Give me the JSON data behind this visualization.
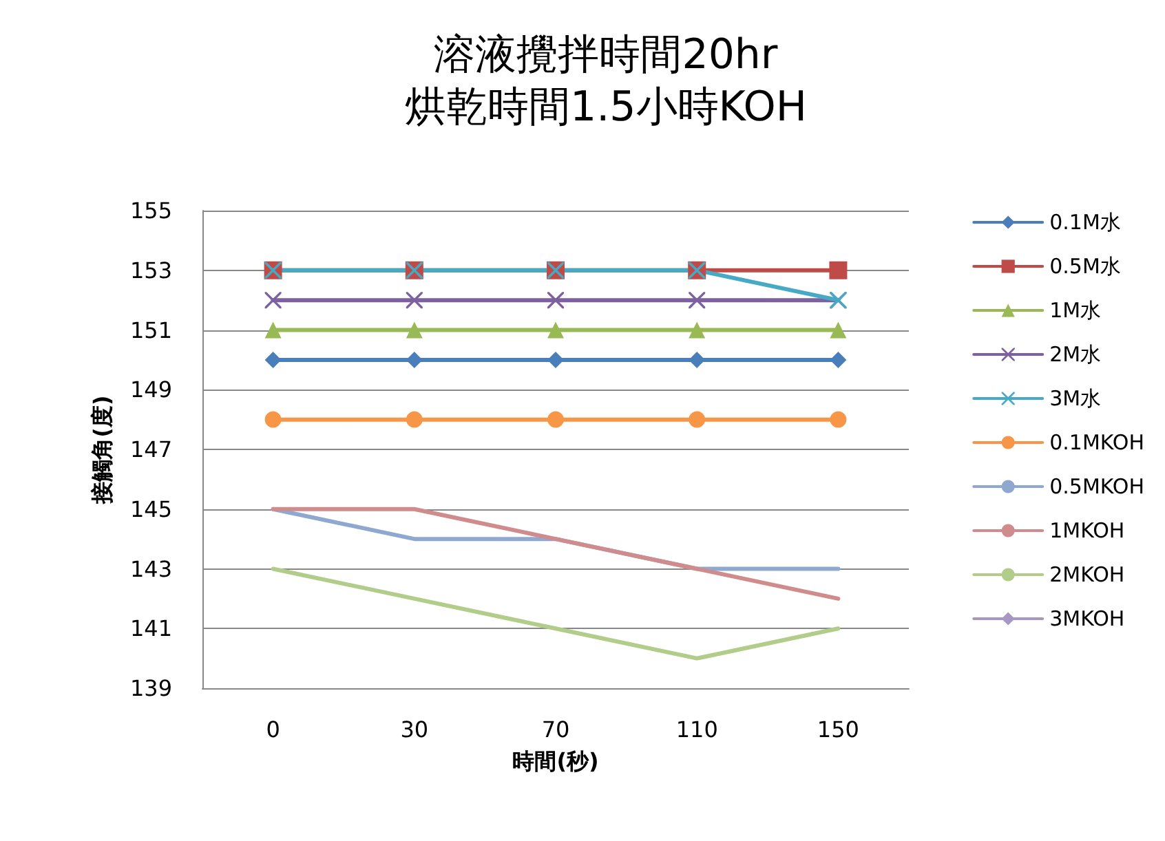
{
  "chart_data": {
    "type": "line",
    "title": "溶液攪拌時間20hr",
    "subtitle": "烘乾時間1.5小時KOH",
    "xlabel": "時間(秒)",
    "ylabel": "接觸角(度)",
    "categories": [
      "0",
      "30",
      "70",
      "110",
      "150"
    ],
    "ylim": [
      139,
      155
    ],
    "yticks": [
      139,
      141,
      143,
      145,
      147,
      149,
      151,
      153,
      155
    ],
    "grid": "y",
    "legend": "right",
    "line_style": "solid",
    "series": [
      {
        "name": "0.1M水",
        "color": "#4a7ebb",
        "marker": "diamond",
        "values": [
          150,
          150,
          150,
          150,
          150
        ]
      },
      {
        "name": "0.5M水",
        "color": "#be4b48",
        "marker": "square",
        "values": [
          153,
          153,
          153,
          153,
          153
        ]
      },
      {
        "name": "1M水",
        "color": "#98b954",
        "marker": "triangle",
        "values": [
          151,
          151,
          151,
          151,
          151
        ]
      },
      {
        "name": "2M水",
        "color": "#7d60a0",
        "marker": "cross",
        "values": [
          152,
          152,
          152,
          152,
          152
        ]
      },
      {
        "name": "3M水",
        "color": "#46aac5",
        "marker": "cross",
        "values": [
          153,
          153,
          153,
          153,
          152
        ]
      },
      {
        "name": "0.1MKOH",
        "color": "#f79646",
        "marker": "circle",
        "values": [
          148,
          148,
          148,
          148,
          148
        ]
      },
      {
        "name": "0.5MKOH",
        "color": "#8fa8d0",
        "marker": "none",
        "values": [
          145,
          144,
          144,
          143,
          143
        ]
      },
      {
        "name": "1MKOH",
        "color": "#d08c8c",
        "marker": "none",
        "values": [
          145,
          145,
          144,
          143,
          142
        ]
      },
      {
        "name": "2MKOH",
        "color": "#b2cc8a",
        "marker": "none",
        "values": [
          143,
          142,
          141,
          140,
          141
        ]
      },
      {
        "name": "3MKOH",
        "color": "#a897c2",
        "marker": "diamond",
        "values": [
          null,
          null,
          null,
          null,
          null
        ]
      }
    ]
  }
}
